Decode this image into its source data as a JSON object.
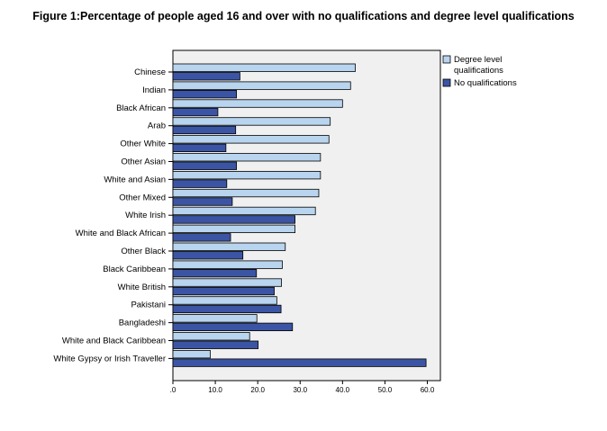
{
  "chart_data": {
    "type": "bar",
    "orientation": "horizontal",
    "title": "Figure 1:Percentage of people aged 16 and over with no qualifications and degree level qualifications",
    "xlabel": "",
    "ylabel": "",
    "xlim": [
      0,
      63
    ],
    "x_ticks": [
      ".0",
      "10.0",
      "20.0",
      "30.0",
      "40.0",
      "50.0",
      "60.0"
    ],
    "grid": false,
    "legend_position": "right",
    "categories": [
      "Chinese",
      "Indian",
      "Black African",
      "Arab",
      "Other White",
      "Other Asian",
      "White and Asian",
      "Other Mixed",
      "White Irish",
      "White and Black African",
      "Other Black",
      "Black Caribbean",
      "White British",
      "Pakistani",
      "Bangladeshi",
      "White and Black Caribbean",
      "White Gypsy or Irish Traveller"
    ],
    "series": [
      {
        "name": "Degree level qualifications",
        "legend_lines": [
          "Degree level",
          "qualifications"
        ],
        "color": "#b8d4ee",
        "values": [
          43.0,
          41.9,
          40.0,
          37.1,
          36.8,
          34.8,
          34.8,
          34.4,
          33.6,
          28.8,
          26.5,
          25.8,
          25.6,
          24.5,
          19.8,
          18.1,
          8.8
        ]
      },
      {
        "name": "No qualifications",
        "legend_lines": [
          "No qualifications"
        ],
        "color": "#3b55a4",
        "values": [
          15.8,
          15.0,
          10.6,
          14.8,
          12.5,
          15.0,
          12.7,
          14.0,
          28.8,
          13.6,
          16.5,
          19.7,
          23.9,
          25.5,
          28.2,
          20.1,
          59.7
        ]
      }
    ]
  }
}
